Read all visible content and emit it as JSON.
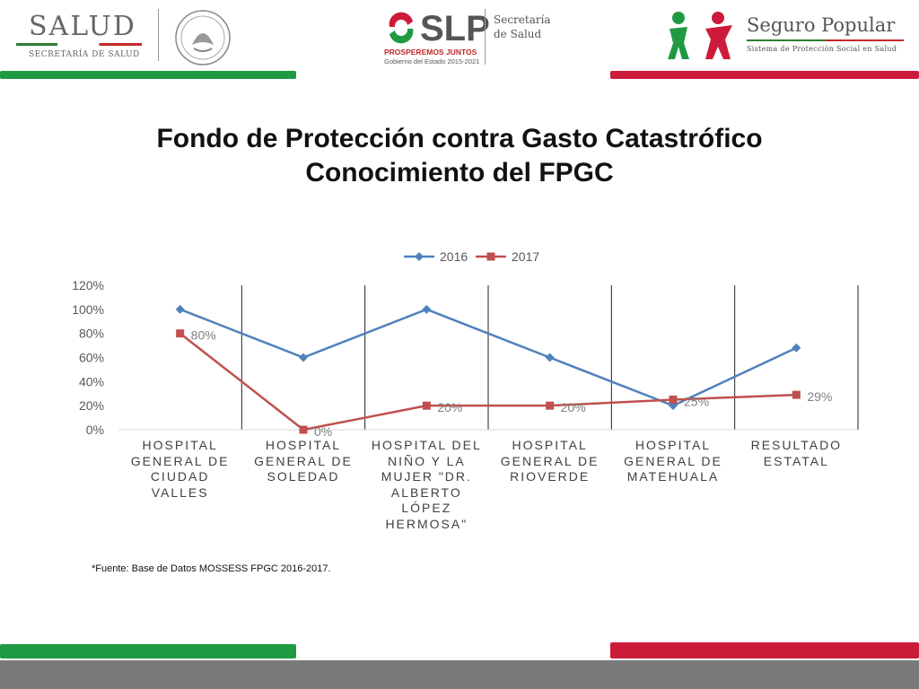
{
  "header": {
    "salud": {
      "name": "SALUD",
      "subtitle": "SECRETARÍA DE SALUD"
    },
    "slp": {
      "name": "SLP",
      "tagline": "PROSPEREMOS JUNTOS",
      "government": "Gobierno del Estado 2015-2021",
      "secretaria": "Secretaría\nde Salud"
    },
    "seguro_popular": {
      "name": "Seguro Popular",
      "subtitle": "Sistema de Protección Social en Salud"
    }
  },
  "title": {
    "line1": "Fondo de Protección contra Gasto Catastrófico",
    "line2": "Conocimiento del FPGC"
  },
  "chart_data": {
    "type": "line",
    "categories": [
      "HOSPITAL GENERAL DE CIUDAD VALLES",
      "HOSPITAL GENERAL DE SOLEDAD",
      "HOSPITAL DEL NIÑO Y LA MUJER \"DR. ALBERTO LÓPEZ HERMOSA\"",
      "HOSPITAL GENERAL DE RIOVERDE",
      "HOSPITAL GENERAL DE MATEHUALA",
      "RESULTADO ESTATAL"
    ],
    "series": [
      {
        "name": "2016",
        "values": [
          100,
          60,
          100,
          60,
          20,
          68
        ],
        "color": "#4f81bd",
        "marker": "diamond",
        "labels": []
      },
      {
        "name": "2017",
        "values": [
          80,
          0,
          20,
          20,
          25,
          29
        ],
        "color": "#c0504d",
        "marker": "square",
        "labels": [
          "80%",
          "0%",
          "20%",
          "20%",
          "25%",
          "29%"
        ]
      }
    ],
    "ylim": [
      0,
      120
    ],
    "yticks": [
      "0%",
      "20%",
      "40%",
      "60%",
      "80%",
      "100%",
      "120%"
    ],
    "legend": "top-center",
    "grid": false
  },
  "source_note": "*Fuente: Base de Datos MOSSESS FPGC 2016-2017."
}
